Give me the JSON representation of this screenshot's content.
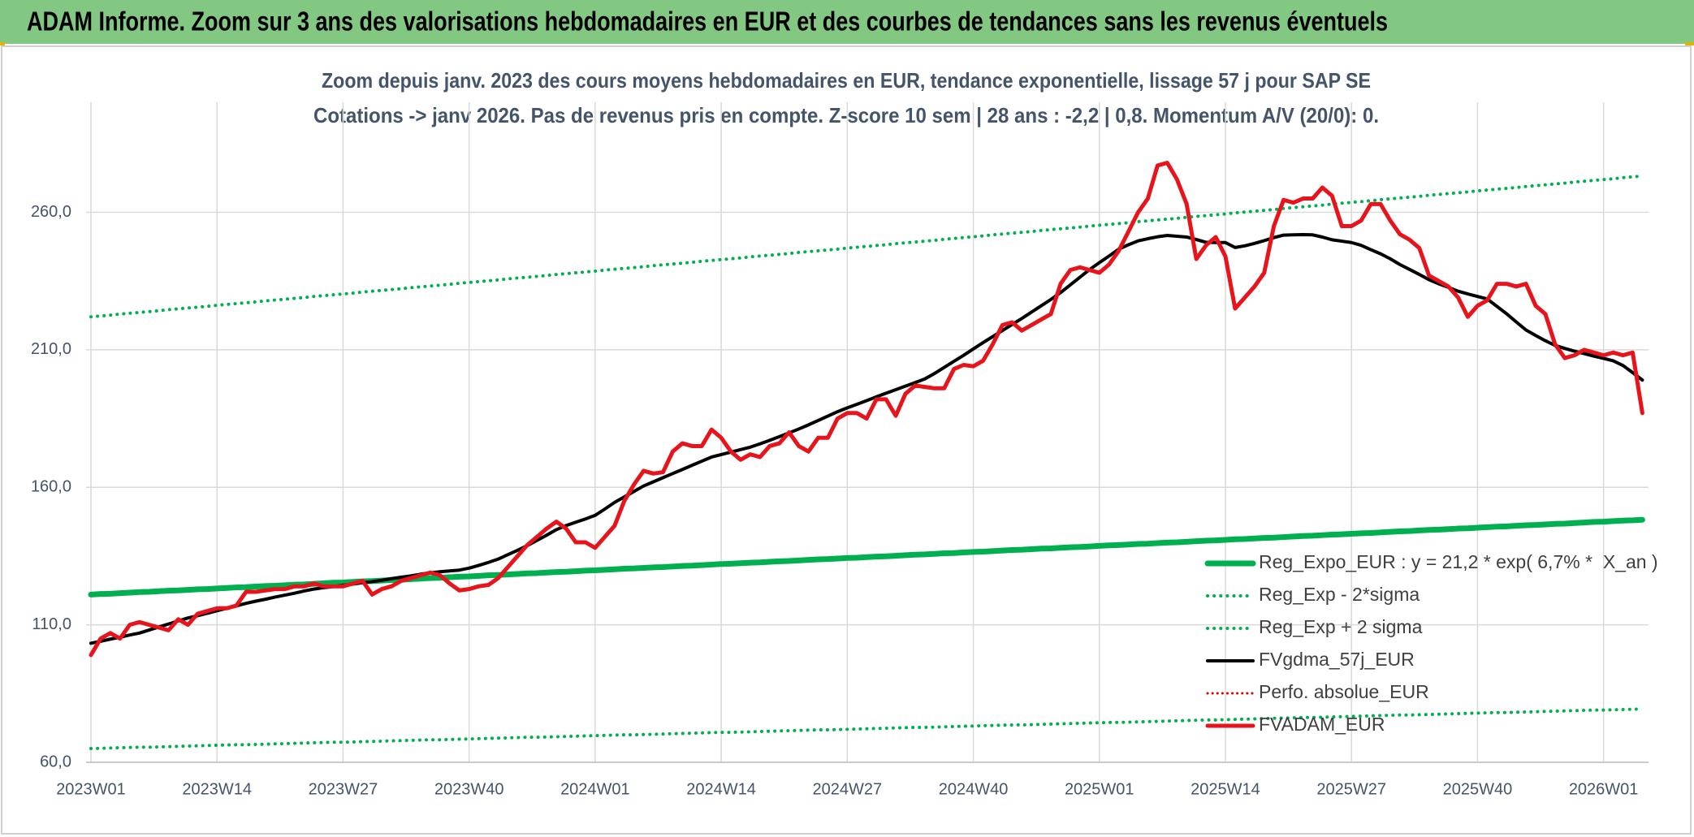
{
  "header": {
    "title": "ADAM Informe. Zoom sur 3 ans des valorisations hebdomadaires en EUR et des courbes de tendances sans les revenus éventuels"
  },
  "chart_data": {
    "type": "line",
    "subtitle": [
      "Zoom depuis janv. 2023 des cours moyens hebdomadaires en EUR, tendance exponentielle, lissage 57 j pour SAP SE",
      "Cotations -> janv 2026. Pas de revenus pris en compte. Z-score 10 sem | 28 ans : -2,2 | 0,8. Momentum A/V (20/0): 0."
    ],
    "categories": [
      "2023W01",
      null,
      null,
      null,
      null,
      null,
      null,
      null,
      null,
      null,
      null,
      null,
      null,
      "2023W14",
      null,
      null,
      null,
      null,
      null,
      null,
      null,
      null,
      null,
      null,
      null,
      null,
      "2023W27",
      null,
      null,
      null,
      null,
      null,
      null,
      null,
      null,
      null,
      null,
      null,
      null,
      "2023W40",
      null,
      null,
      null,
      null,
      null,
      null,
      null,
      null,
      null,
      null,
      null,
      null,
      "2024W01",
      null,
      null,
      null,
      null,
      null,
      null,
      null,
      null,
      null,
      null,
      null,
      null,
      "2024W14",
      null,
      null,
      null,
      null,
      null,
      null,
      null,
      null,
      null,
      null,
      null,
      null,
      "2024W27",
      null,
      null,
      null,
      null,
      null,
      null,
      null,
      null,
      null,
      null,
      null,
      null,
      "2024W40",
      null,
      null,
      null,
      null,
      null,
      null,
      null,
      null,
      null,
      null,
      null,
      null,
      "2025W01",
      null,
      null,
      null,
      null,
      null,
      null,
      null,
      null,
      null,
      null,
      null,
      null,
      "2025W14",
      null,
      null,
      null,
      null,
      null,
      null,
      null,
      null,
      null,
      null,
      null,
      null,
      "2025W27",
      null,
      null,
      null,
      null,
      null,
      null,
      null,
      null,
      null,
      null,
      null,
      null,
      "2025W40",
      null,
      null,
      null,
      null,
      null,
      null,
      null,
      null,
      null,
      null,
      null,
      null,
      "2026W01",
      null,
      null,
      null,
      null
    ],
    "ylim": [
      60,
      300
    ],
    "yticks": [
      {
        "value": 60,
        "label": "60,0"
      },
      {
        "value": 110,
        "label": "110,0"
      },
      {
        "value": 160,
        "label": "160,0"
      },
      {
        "value": 210,
        "label": "210,0"
      },
      {
        "value": 260,
        "label": "260,0"
      }
    ],
    "grid": true,
    "legend": "lower right",
    "series": [
      {
        "name": "Reg_Expo_EUR : y = 21,2 * exp( 6,7% *  X_an )",
        "color": "#00b050",
        "style": "solid",
        "width": 7,
        "values": [
          121.0,
          121.2,
          121.3,
          121.5,
          121.7,
          121.9,
          122.0,
          122.2,
          122.4,
          122.5,
          122.7,
          122.9,
          123.0,
          123.2,
          123.4,
          123.6,
          123.7,
          123.9,
          124.1,
          124.2,
          124.4,
          124.6,
          124.7,
          124.9,
          125.1,
          125.3,
          125.4,
          125.6,
          125.8,
          125.9,
          126.1,
          126.3,
          126.4,
          126.6,
          126.8,
          127.0,
          127.1,
          127.3,
          127.5,
          127.6,
          127.8,
          128.0,
          128.1,
          128.3,
          128.5,
          128.7,
          128.8,
          129.0,
          129.2,
          129.3,
          129.5,
          129.7,
          129.8,
          130.0,
          130.2,
          130.4,
          130.5,
          130.7,
          130.9,
          131.0,
          131.2,
          131.4,
          131.5,
          131.7,
          131.9,
          132.1,
          132.2,
          132.4,
          132.6,
          132.7,
          132.9,
          133.1,
          133.2,
          133.4,
          133.6,
          133.8,
          133.9,
          134.1,
          134.3,
          134.4,
          134.6,
          134.8,
          134.9,
          135.1,
          135.3,
          135.5,
          135.6,
          135.8,
          136.0,
          136.1,
          136.3,
          136.5,
          136.6,
          136.8,
          137.0,
          137.2,
          137.3,
          137.5,
          137.7,
          137.8,
          138.0,
          138.2,
          138.3,
          138.5,
          138.7,
          138.9,
          139.0,
          139.2,
          139.4,
          139.5,
          139.7,
          139.9,
          140.0,
          140.2,
          140.4,
          140.6,
          140.7,
          140.9,
          141.1,
          141.2,
          141.4,
          141.6,
          141.7,
          141.9,
          142.1,
          142.3,
          142.4,
          142.6,
          142.8,
          142.9,
          143.1,
          143.3,
          143.4,
          143.6,
          143.8,
          144.0,
          144.1,
          144.3,
          144.5,
          144.6,
          144.8,
          145.0,
          145.1,
          145.3,
          145.5,
          145.7,
          145.8,
          146.0,
          146.2,
          146.3,
          146.5,
          146.7,
          146.8,
          147.0,
          147.2,
          147.4,
          147.5,
          147.7,
          147.9,
          148.0,
          148.2
        ]
      },
      {
        "name": "Reg_Exp - 2*sigma",
        "color": "#00b050",
        "style": "dotted",
        "width": 4,
        "values": [
          65.0,
          65.1,
          65.2,
          65.3,
          65.4,
          65.5,
          65.5,
          65.6,
          65.7,
          65.8,
          65.9,
          66.0,
          66.1,
          66.2,
          66.3,
          66.4,
          66.4,
          66.5,
          66.6,
          66.7,
          66.8,
          66.9,
          67.0,
          67.1,
          67.2,
          67.3,
          67.3,
          67.4,
          67.5,
          67.6,
          67.7,
          67.8,
          67.9,
          68.0,
          68.1,
          68.2,
          68.2,
          68.3,
          68.4,
          68.5,
          68.6,
          68.7,
          68.8,
          68.9,
          69.0,
          69.1,
          69.1,
          69.2,
          69.3,
          69.4,
          69.5,
          69.6,
          69.7,
          69.8,
          69.9,
          70.0,
          70.0,
          70.1,
          70.2,
          70.3,
          70.4,
          70.5,
          70.6,
          70.7,
          70.8,
          70.9,
          70.9,
          71.0,
          71.1,
          71.2,
          71.3,
          71.4,
          71.5,
          71.6,
          71.7,
          71.8,
          71.8,
          71.9,
          72.0,
          72.1,
          72.2,
          72.3,
          72.4,
          72.5,
          72.6,
          72.7,
          72.7,
          72.8,
          72.9,
          73.0,
          73.1,
          73.2,
          73.3,
          73.4,
          73.5,
          73.6,
          73.6,
          73.7,
          73.8,
          73.9,
          74.0,
          74.1,
          74.2,
          74.3,
          74.4,
          74.5,
          74.5,
          74.6,
          74.7,
          74.8,
          74.9,
          75.0,
          75.1,
          75.2,
          75.3,
          75.4,
          75.4,
          75.5,
          75.6,
          75.7,
          75.8,
          75.9,
          76.0,
          76.1,
          76.2,
          76.3,
          76.3,
          76.4,
          76.5,
          76.6,
          76.7,
          76.8,
          76.9,
          77.0,
          77.1,
          77.2,
          77.2,
          77.3,
          77.4,
          77.5,
          77.6,
          77.7,
          77.8,
          77.9,
          78.0,
          78.1,
          78.1,
          78.2,
          78.3,
          78.4,
          78.5,
          78.6,
          78.7,
          78.8,
          78.9,
          79.0,
          79.0,
          79.1,
          79.2,
          79.3,
          79.4
        ]
      },
      {
        "name": "Reg_Exp + 2 sigma",
        "color": "#00b050",
        "style": "dotted",
        "width": 4,
        "values": [
          222.0,
          222.3,
          222.6,
          223.0,
          223.3,
          223.6,
          223.9,
          224.2,
          224.6,
          224.9,
          225.2,
          225.5,
          225.8,
          226.2,
          226.5,
          226.8,
          227.1,
          227.4,
          227.8,
          228.1,
          228.4,
          228.7,
          229.0,
          229.4,
          229.7,
          230.0,
          230.3,
          230.6,
          231.0,
          231.3,
          231.6,
          231.9,
          232.2,
          232.6,
          232.9,
          233.2,
          233.5,
          233.8,
          234.2,
          234.5,
          234.8,
          235.1,
          235.4,
          235.8,
          236.1,
          236.4,
          236.7,
          237.0,
          237.4,
          237.7,
          238.0,
          238.3,
          238.6,
          239.0,
          239.3,
          239.6,
          239.9,
          240.2,
          240.6,
          240.9,
          241.2,
          241.5,
          241.8,
          242.2,
          242.5,
          242.8,
          243.1,
          243.4,
          243.8,
          244.1,
          244.4,
          244.7,
          245.0,
          245.4,
          245.7,
          246.0,
          246.3,
          246.6,
          247.0,
          247.3,
          247.6,
          247.9,
          248.2,
          248.6,
          248.9,
          249.2,
          249.5,
          249.8,
          250.2,
          250.5,
          250.8,
          251.1,
          251.4,
          251.8,
          252.1,
          252.4,
          252.7,
          253.0,
          253.4,
          253.7,
          254.0,
          254.3,
          254.6,
          255.0,
          255.3,
          255.6,
          255.9,
          256.2,
          256.6,
          256.9,
          257.2,
          257.5,
          257.8,
          258.2,
          258.5,
          258.8,
          259.1,
          259.4,
          259.8,
          260.1,
          260.4,
          260.7,
          261.0,
          261.4,
          261.7,
          262.0,
          262.3,
          262.6,
          263.0,
          263.3,
          263.6,
          263.9,
          264.2,
          264.6,
          264.9,
          265.2,
          265.5,
          265.8,
          266.2,
          266.5,
          266.8,
          267.1,
          267.4,
          267.8,
          268.1,
          268.4,
          268.7,
          269.0,
          269.4,
          269.7,
          270.0,
          270.3,
          270.6,
          271.0,
          271.3,
          271.6,
          271.9,
          272.2,
          272.6,
          272.9,
          273.2
        ]
      },
      {
        "name": "FVgdma_57j_EUR",
        "color": "#000000",
        "style": "solid",
        "width": 4,
        "values": [
          103.3,
          104.0,
          104.8,
          105.5,
          106.3,
          107.0,
          108.1,
          109.2,
          110.3,
          111.4,
          112.5,
          113.3,
          114.2,
          115.1,
          116.0,
          116.9,
          117.8,
          118.6,
          119.3,
          120.1,
          120.8,
          121.5,
          122.3,
          123.0,
          123.5,
          123.9,
          124.4,
          124.8,
          125.3,
          125.7,
          126.2,
          126.8,
          127.3,
          127.8,
          128.4,
          128.9,
          129.3,
          129.6,
          129.9,
          130.6,
          131.6,
          132.7,
          133.9,
          135.5,
          137.1,
          138.8,
          140.7,
          142.6,
          144.6,
          146.1,
          147.3,
          148.5,
          149.8,
          152.1,
          154.5,
          156.5,
          158.5,
          160.5,
          162.0,
          163.5,
          165.0,
          166.5,
          168.0,
          169.5,
          171.0,
          171.9,
          172.8,
          173.7,
          174.6,
          175.8,
          177.1,
          178.4,
          179.8,
          181.2,
          182.7,
          184.3,
          185.9,
          187.5,
          188.9,
          190.2,
          191.5,
          192.9,
          194.2,
          195.5,
          196.8,
          198.1,
          199.4,
          201.4,
          203.6,
          205.8,
          208.0,
          210.3,
          212.6,
          214.8,
          217.0,
          219.2,
          221.4,
          223.7,
          226.0,
          228.3,
          230.8,
          233.6,
          236.4,
          239.2,
          241.7,
          244.1,
          246.6,
          248.2,
          249.6,
          250.4,
          251.1,
          251.6,
          251.3,
          251.0,
          250.1,
          249.1,
          249.0,
          249.0,
          247.2,
          247.8,
          248.7,
          249.7,
          250.8,
          251.7,
          251.8,
          251.9,
          251.8,
          251.0,
          250.0,
          249.5,
          249.0,
          248.0,
          246.4,
          244.9,
          243.1,
          241.0,
          239.2,
          237.4,
          235.5,
          234.0,
          232.7,
          231.3,
          230.3,
          229.4,
          228.5,
          225.8,
          223.1,
          220.1,
          217.2,
          215.2,
          213.3,
          211.6,
          210.5,
          209.5,
          208.6,
          207.7,
          206.9,
          206.0,
          204.3,
          201.7,
          199.0
        ]
      },
      {
        "name": "Perfo. absolue_EUR",
        "color": "#e00000",
        "style": "dotted",
        "width": 3,
        "values": [
          null,
          null,
          null,
          null,
          null,
          null,
          null,
          null,
          null,
          null,
          null,
          null,
          null,
          null,
          null,
          null,
          null,
          null,
          null,
          null,
          null,
          null,
          null,
          null,
          null,
          null,
          null,
          null,
          null,
          null,
          null,
          null,
          null,
          null,
          null,
          null,
          null,
          null,
          null,
          null,
          null,
          null,
          null,
          null,
          null,
          null,
          null,
          null,
          null,
          null,
          null,
          null,
          null,
          null,
          null,
          null,
          null,
          null,
          null,
          null,
          null,
          null,
          null,
          null,
          null,
          null,
          null,
          null,
          null,
          null,
          null,
          null,
          null,
          null,
          null,
          null,
          null,
          null,
          null,
          null,
          null,
          null,
          null,
          null,
          null,
          null,
          null,
          null,
          null,
          null,
          null,
          null,
          null,
          null,
          null,
          null,
          null,
          null,
          null,
          null,
          null,
          null,
          null,
          null,
          null,
          null,
          null,
          null,
          null,
          null,
          null,
          null,
          null,
          null,
          null,
          null,
          null,
          null,
          null,
          null,
          null,
          null,
          null,
          null,
          null,
          null,
          null,
          null,
          null,
          null,
          null,
          null,
          null,
          null,
          null,
          null,
          null,
          null,
          null,
          null,
          null,
          null,
          null,
          null,
          null,
          null,
          null,
          null,
          null,
          null,
          null,
          null,
          null,
          null,
          null,
          null,
          null,
          null,
          null,
          null,
          null
        ]
      },
      {
        "name": "FVADAM_EUR",
        "color": "#e8141c",
        "style": "solid",
        "width": 5,
        "values": [
          99,
          105,
          107,
          105,
          110,
          111,
          110,
          109,
          108,
          112,
          110,
          114,
          115,
          116,
          116,
          117,
          122,
          122,
          122.5,
          123,
          123,
          124,
          124,
          125,
          124,
          124,
          124,
          125,
          126,
          121,
          123,
          124,
          126,
          127,
          128,
          129,
          128,
          125,
          122.5,
          123,
          124,
          124.5,
          127,
          131,
          135,
          139,
          142,
          145,
          147.5,
          145,
          140,
          140,
          138,
          142,
          146,
          155,
          161,
          166,
          165,
          165.5,
          173,
          176,
          175,
          175,
          181,
          178,
          173,
          170,
          172,
          171,
          175,
          176,
          180,
          175,
          173,
          178,
          178,
          185,
          187,
          187,
          185,
          192,
          192,
          186,
          194,
          197,
          196.5,
          196,
          196,
          203,
          204.5,
          204,
          206,
          212,
          219,
          220,
          217,
          219,
          221,
          223,
          234,
          239,
          240,
          239,
          238,
          241,
          246,
          253,
          260,
          265,
          277,
          278,
          272,
          263,
          243,
          248,
          251,
          244,
          225,
          229,
          233,
          238,
          255,
          264.5,
          263.5,
          265,
          265,
          269,
          266,
          255,
          255,
          257,
          263,
          263,
          257,
          252,
          250,
          247,
          237,
          235,
          233,
          229,
          222,
          226,
          228,
          234,
          234,
          233,
          234,
          226,
          223,
          212,
          207,
          208,
          210,
          209,
          208,
          209,
          208,
          209,
          187
        ]
      }
    ]
  }
}
